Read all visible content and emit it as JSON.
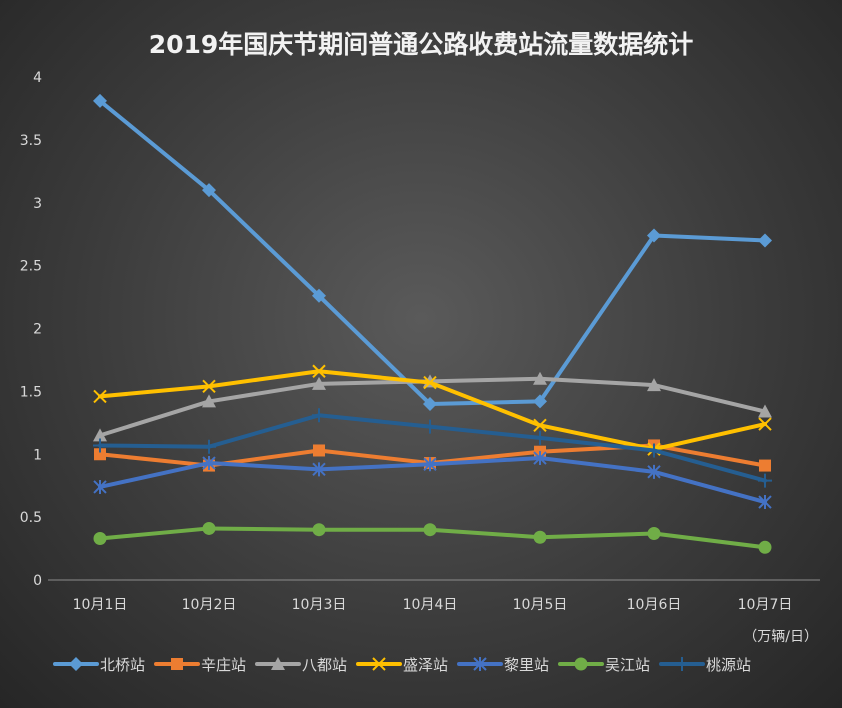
{
  "chart_data": {
    "type": "line",
    "title": "2019年国庆节期间普通公路收费站流量数据统计",
    "unit_label": "（万辆/日）",
    "categories": [
      "10月1日",
      "10月2日",
      "10月3日",
      "10月4日",
      "10月5日",
      "10月6日",
      "10月7日"
    ],
    "ylim": [
      0,
      4
    ],
    "yticks": [
      "0",
      "0.5",
      "1",
      "1.5",
      "2",
      "2.5",
      "3",
      "3.5",
      "4"
    ],
    "ytick_values": [
      0,
      0.5,
      1,
      1.5,
      2,
      2.5,
      3,
      3.5,
      4
    ],
    "grid": false,
    "legend_position": "bottom",
    "series": [
      {
        "name": "北桥站",
        "color": "#5b9bd5",
        "marker": "diamond",
        "values": [
          3.81,
          3.1,
          2.26,
          1.4,
          1.42,
          2.74,
          2.7
        ]
      },
      {
        "name": "辛庄站",
        "color": "#ed7d31",
        "marker": "square",
        "values": [
          1.0,
          0.91,
          1.03,
          0.93,
          1.02,
          1.07,
          0.91
        ]
      },
      {
        "name": "八都站",
        "color": "#a5a5a5",
        "marker": "triangle",
        "values": [
          1.15,
          1.42,
          1.56,
          1.58,
          1.6,
          1.55,
          1.34
        ]
      },
      {
        "name": "盛泽站",
        "color": "#ffc000",
        "marker": "x",
        "values": [
          1.46,
          1.54,
          1.66,
          1.57,
          1.23,
          1.04,
          1.24
        ]
      },
      {
        "name": "黎里站",
        "color": "#4472c4",
        "marker": "star",
        "values": [
          0.74,
          0.93,
          0.88,
          0.92,
          0.97,
          0.86,
          0.62
        ]
      },
      {
        "name": "吴江站",
        "color": "#70ad47",
        "marker": "circle",
        "values": [
          0.33,
          0.41,
          0.4,
          0.4,
          0.34,
          0.37,
          0.26
        ]
      },
      {
        "name": "桃源站",
        "color": "#255e91",
        "marker": "plus",
        "values": [
          1.07,
          1.06,
          1.31,
          1.22,
          1.13,
          1.03,
          0.79
        ]
      }
    ]
  }
}
